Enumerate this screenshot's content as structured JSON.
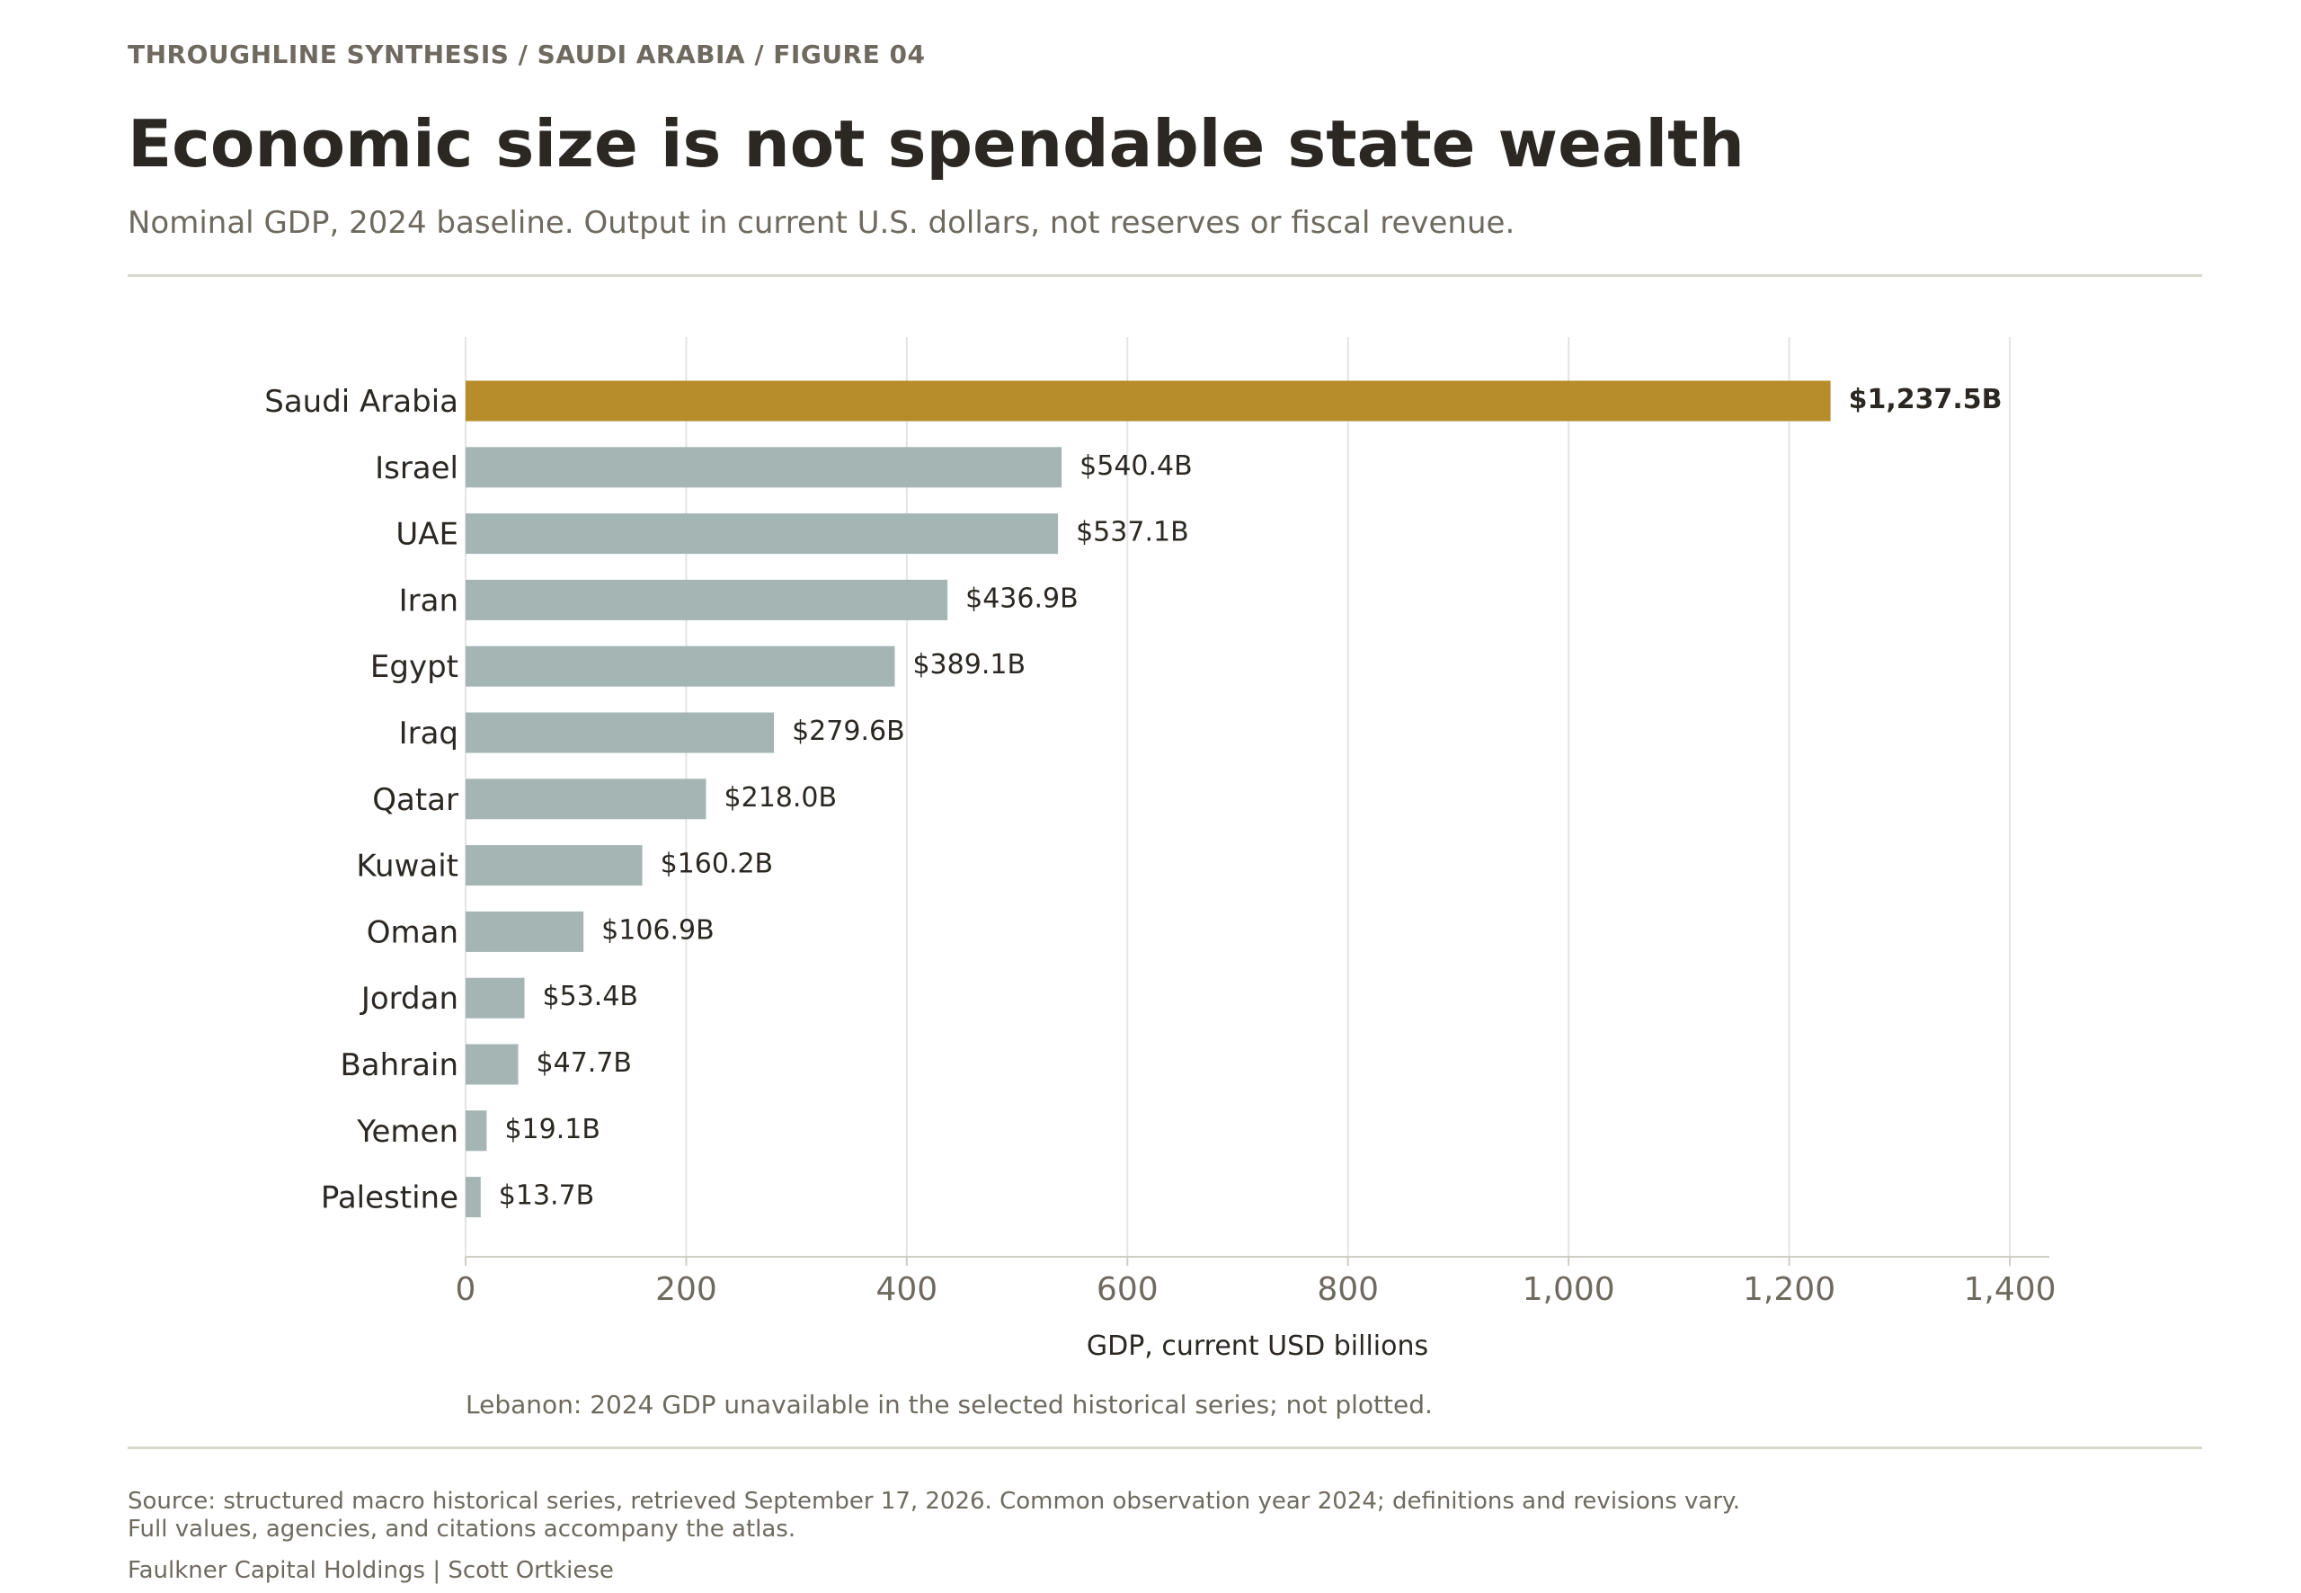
{
  "header": {
    "kicker": "THROUGHLINE SYNTHESIS / SAUDI ARABIA / FIGURE 04",
    "title": "Economic size is not spendable state wealth",
    "subtitle": "Nominal GDP, 2024 baseline. Output in current U.S. dollars, not reserves or fiscal revenue."
  },
  "chart_data": {
    "type": "bar",
    "orientation": "horizontal",
    "categories": [
      "Saudi Arabia",
      "Israel",
      "UAE",
      "Iran",
      "Egypt",
      "Iraq",
      "Qatar",
      "Kuwait",
      "Oman",
      "Jordan",
      "Bahrain",
      "Yemen",
      "Palestine"
    ],
    "values": [
      1237.5,
      540.4,
      537.1,
      436.9,
      389.1,
      279.6,
      218.0,
      160.2,
      106.9,
      53.4,
      47.7,
      19.1,
      13.7
    ],
    "value_labels": [
      "$1,237.5B",
      "$540.4B",
      "$537.1B",
      "$436.9B",
      "$389.1B",
      "$279.6B",
      "$218.0B",
      "$160.2B",
      "$106.9B",
      "$53.4B",
      "$47.7B",
      "$19.1B",
      "$13.7B"
    ],
    "highlight": "Saudi Arabia",
    "xlabel": "GDP, current USD billions",
    "xlim": [
      0,
      1440
    ],
    "xticks": [
      0,
      200,
      400,
      600,
      800,
      1000,
      1200,
      1400
    ],
    "xtick_labels": [
      "0",
      "200",
      "400",
      "600",
      "800",
      "1,000",
      "1,200",
      "1,400"
    ],
    "grid": "vertical",
    "colors": {
      "highlight": "#b78d2c",
      "default": "#a5b5b4",
      "grid": "#e4e4e4",
      "axis": "#cfcdc4"
    }
  },
  "note": "Lebanon: 2024 GDP unavailable in the selected historical series; not plotted.",
  "footer": {
    "source_line1": "Source: structured macro historical series, retrieved September 17, 2026. Common observation year 2024; definitions and revisions vary.",
    "source_line2": "Full values, agencies, and citations accompany the atlas.",
    "credit": "Faulkner Capital Holdings | Scott Ortkiese"
  }
}
